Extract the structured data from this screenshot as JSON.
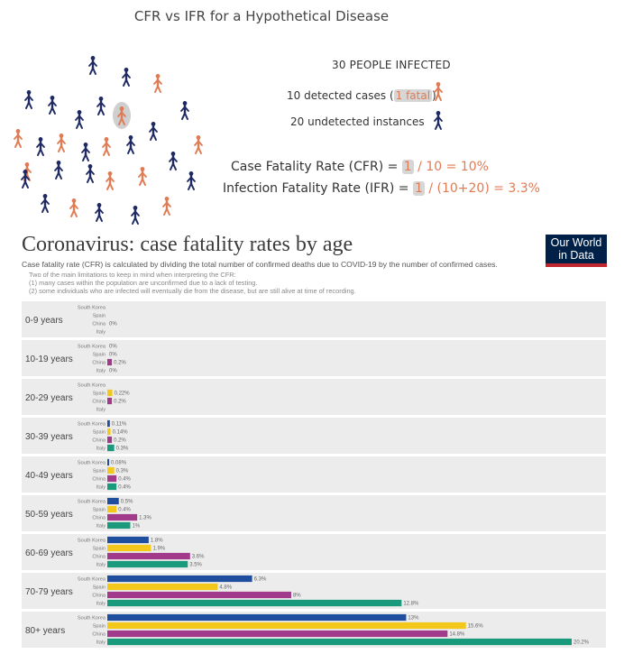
{
  "figure": {
    "title": "CFR vs IFR for a Hypothetical Disease",
    "total_infected": "30 PEOPLE INFECTED",
    "detected": {
      "pre": "10 detected cases (",
      "fatal": "1 fatal",
      "post": ")"
    },
    "undetected": "20 undetected instances",
    "cfr": {
      "pre": "Case Fatality Rate (CFR) = ",
      "num": "1",
      "post": " / 10 = 10%"
    },
    "ifr": {
      "pre": "Infection Fatality Rate (IFR) = ",
      "num": "1",
      "post": " / (10+20) = 3.3%"
    },
    "colors": {
      "detected": "#e07b53",
      "undetected": "#1f2a63",
      "fatal_halo": "#cfcfcf"
    }
  },
  "logo": {
    "line1": "Our World",
    "line2": "in Data",
    "bg": "#002147",
    "accent": "#c0262d"
  },
  "chart_data": {
    "type": "bar",
    "orientation": "horizontal",
    "title": "Coronavirus: case fatality rates by age",
    "subtitle": "Case fatality rate (CFR) is calculated by dividing the total number of confirmed deaths due to COVID-19 by the number of confirmed cases.",
    "notes": [
      "Two of the main limitations to keep in mind when interpreting the CFR:",
      "(1) many cases within the population are unconfirmed due to a lack of testing.",
      "(2) some individuals who are infected will eventually die from the disease, but are still alive at time of recording."
    ],
    "unit": "%",
    "series": [
      {
        "name": "South Korea",
        "color": "#1f4e9e"
      },
      {
        "name": "Spain",
        "color": "#f3c81a"
      },
      {
        "name": "China",
        "color": "#a23a8c"
      },
      {
        "name": "Italy",
        "color": "#1a9a7c"
      }
    ],
    "groups": [
      {
        "label": "0-9 years",
        "values": [
          null,
          null,
          0,
          null
        ],
        "labels": [
          "",
          "",
          "0%",
          ""
        ]
      },
      {
        "label": "10-19 years",
        "values": [
          0,
          0,
          0.2,
          0
        ],
        "labels": [
          "0%",
          "0%",
          "0.2%",
          "0%"
        ]
      },
      {
        "label": "20-29 years",
        "values": [
          null,
          0.22,
          0.2,
          null
        ],
        "labels": [
          "",
          "0.22%",
          "0.2%",
          ""
        ]
      },
      {
        "label": "30-39 years",
        "values": [
          0.11,
          0.14,
          0.2,
          0.3
        ],
        "labels": [
          "0.11%",
          "0.14%",
          "0.2%",
          "0.3%"
        ]
      },
      {
        "label": "40-49 years",
        "values": [
          0.08,
          0.3,
          0.4,
          0.4
        ],
        "labels": [
          "0.08%",
          "0.3%",
          "0.4%",
          "0.4%"
        ]
      },
      {
        "label": "50-59 years",
        "values": [
          0.5,
          0.4,
          1.3,
          1
        ],
        "labels": [
          "0.5%",
          "0.4%",
          "1.3%",
          "1%"
        ]
      },
      {
        "label": "60-69 years",
        "values": [
          1.8,
          1.9,
          3.6,
          3.5
        ],
        "labels": [
          "1.8%",
          "1.9%",
          "3.6%",
          "3.5%"
        ]
      },
      {
        "label": "70-79 years",
        "values": [
          6.3,
          4.8,
          8,
          12.8
        ],
        "labels": [
          "6.3%",
          "4.8%",
          "8%",
          "12.8%"
        ]
      },
      {
        "label": "80+ years",
        "values": [
          13,
          15.6,
          14.8,
          20.2
        ],
        "labels": [
          "13%",
          "15.6%",
          "14.8%",
          "20.2%"
        ]
      }
    ],
    "xlim": [
      0,
      20.2
    ]
  }
}
